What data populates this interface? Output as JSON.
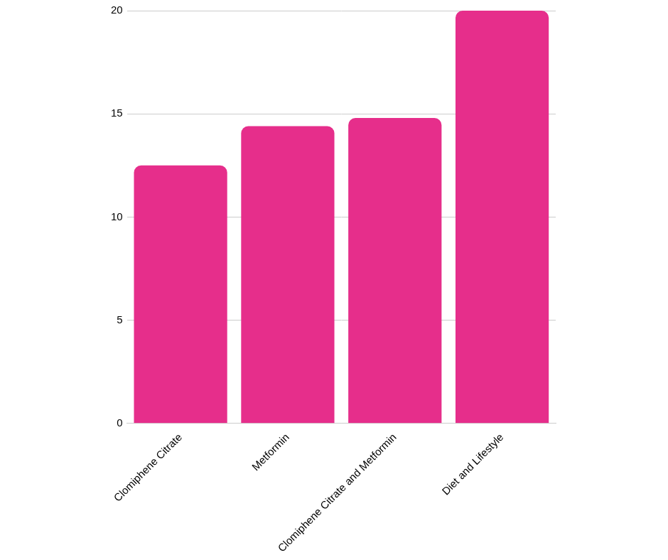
{
  "chart_data": {
    "type": "bar",
    "categories": [
      "Clomiphene Citrate",
      "Metformin",
      "Clomiphene Citrate and Metformin",
      "Diet and Lifestyle"
    ],
    "values": [
      12.5,
      14.4,
      14.8,
      20
    ],
    "color": "#e62e8b",
    "ylim": [
      0,
      20
    ],
    "yticks": [
      0,
      5,
      10,
      15,
      20
    ],
    "grid": true
  }
}
